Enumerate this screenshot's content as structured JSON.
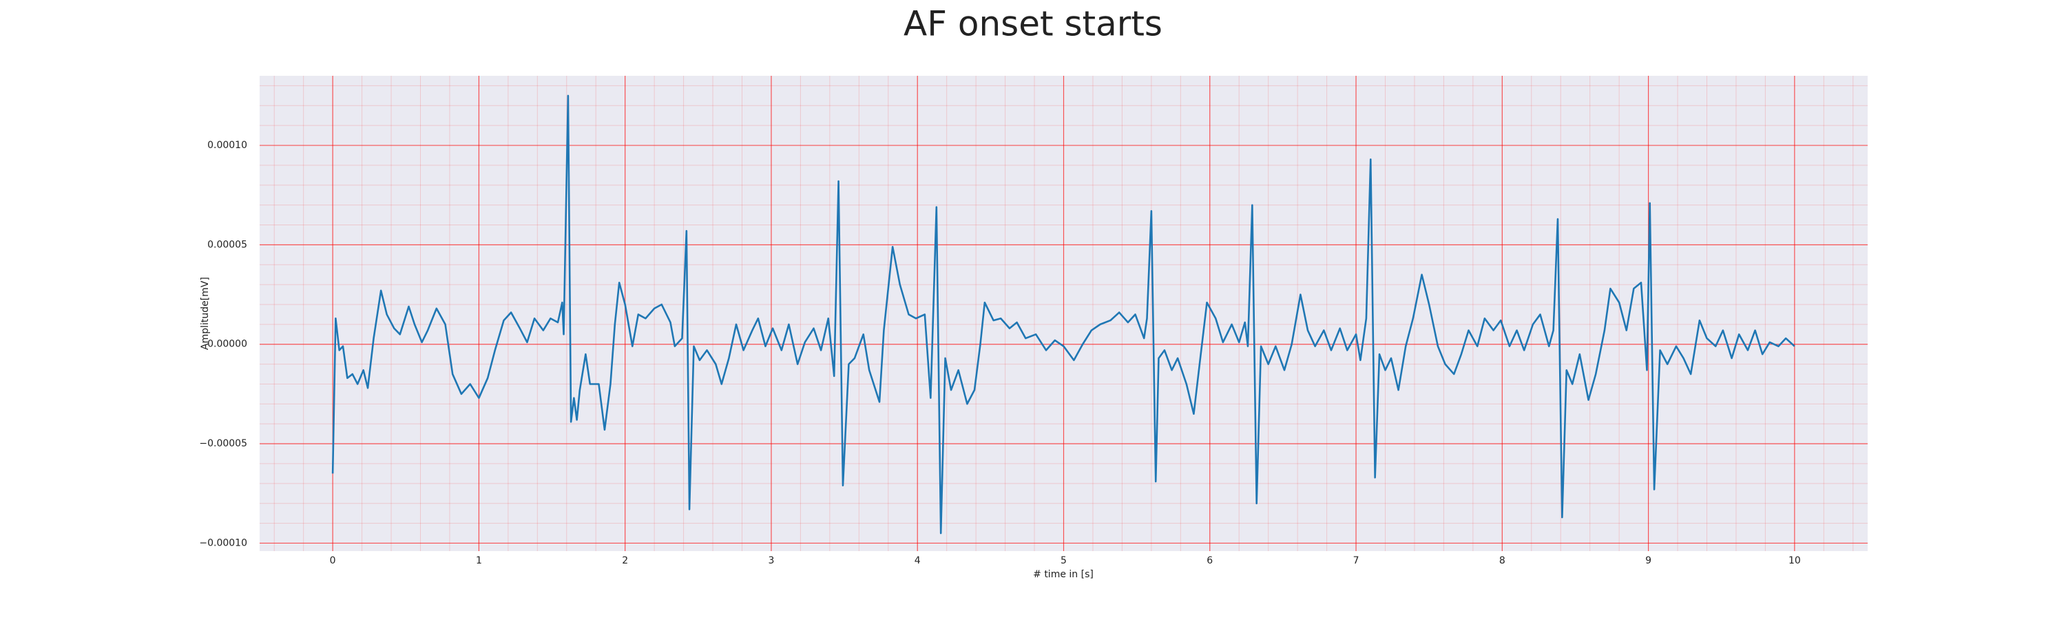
{
  "chart_data": {
    "type": "line",
    "title": "AF onset starts",
    "xlabel": "# time in [s]",
    "ylabel": "Amplitude[mV]",
    "xlim": [
      -0.5,
      10.5
    ],
    "ylim": [
      -0.000104,
      0.000135
    ],
    "xticks": [
      0,
      1,
      2,
      3,
      4,
      5,
      6,
      7,
      8,
      9,
      10
    ],
    "yticks": [
      {
        "value": -0.0001,
        "label": "−0.00010"
      },
      {
        "value": -5e-05,
        "label": "−0.00005"
      },
      {
        "value": 0,
        "label": "0.00000"
      },
      {
        "value": 5e-05,
        "label": "0.00005"
      },
      {
        "value": 0.0001,
        "label": "0.00010"
      }
    ],
    "grid": true,
    "minor_grid": true,
    "grid_color": "#ff0000",
    "background": "#eaeaf2",
    "series": [
      {
        "color": "#1f77b4",
        "x": [
          0,
          0.02,
          0.045,
          0.07,
          0.1,
          0.135,
          0.17,
          0.21,
          0.24,
          0.28,
          0.33,
          0.37,
          0.42,
          0.46,
          0.52,
          0.56,
          0.61,
          0.65,
          0.71,
          0.77,
          0.82,
          0.88,
          0.94,
          1.0,
          1.06,
          1.11,
          1.17,
          1.22,
          1.28,
          1.33,
          1.38,
          1.44,
          1.49,
          1.54,
          1.57,
          1.58,
          1.61,
          1.63,
          1.65,
          1.67,
          1.69,
          1.73,
          1.76,
          1.82,
          1.86,
          1.9,
          1.93,
          1.96,
          2.0,
          2.05,
          2.09,
          2.14,
          2.2,
          2.25,
          2.31,
          2.34,
          2.39,
          2.42,
          2.44,
          2.47,
          2.51,
          2.56,
          2.62,
          2.66,
          2.71,
          2.76,
          2.81,
          2.87,
          2.91,
          2.96,
          3.01,
          3.07,
          3.12,
          3.18,
          3.23,
          3.29,
          3.34,
          3.39,
          3.43,
          3.46,
          3.49,
          3.53,
          3.57,
          3.63,
          3.67,
          3.74,
          3.77,
          3.83,
          3.88,
          3.94,
          3.99,
          4.05,
          4.09,
          4.13,
          4.16,
          4.19,
          4.23,
          4.28,
          4.34,
          4.39,
          4.43,
          4.46,
          4.52,
          4.57,
          4.63,
          4.68,
          4.74,
          4.81,
          4.88,
          4.94,
          5.0,
          5.07,
          5.13,
          5.19,
          5.25,
          5.32,
          5.38,
          5.44,
          5.49,
          5.55,
          5.57,
          5.6,
          5.63,
          5.65,
          5.69,
          5.74,
          5.78,
          5.84,
          5.89,
          5.93,
          5.98,
          6.04,
          6.09,
          6.15,
          6.2,
          6.24,
          6.26,
          6.29,
          6.32,
          6.35,
          6.4,
          6.45,
          6.51,
          6.56,
          6.62,
          6.67,
          6.72,
          6.78,
          6.83,
          6.89,
          6.94,
          7.0,
          7.03,
          7.07,
          7.1,
          7.13,
          7.16,
          7.2,
          7.24,
          7.29,
          7.34,
          7.39,
          7.45,
          7.5,
          7.56,
          7.61,
          7.67,
          7.72,
          7.77,
          7.83,
          7.88,
          7.94,
          7.99,
          8.05,
          8.1,
          8.15,
          8.21,
          8.26,
          8.32,
          8.35,
          8.38,
          8.41,
          8.44,
          8.48,
          8.53,
          8.59,
          8.64,
          8.7,
          8.74,
          8.8,
          8.85,
          8.9,
          8.95,
          8.99,
          9.01,
          9.04,
          9.08,
          9.13,
          9.19,
          9.24,
          9.29,
          9.35,
          9.4,
          9.46,
          9.51,
          9.57,
          9.62,
          9.68,
          9.73,
          9.78,
          9.83,
          9.89,
          9.94,
          10.0
        ],
        "values": [
          -6.5e-05,
          1.3e-05,
          -3e-06,
          -1e-06,
          -1.7e-05,
          -1.5e-05,
          -2e-05,
          -1.3e-05,
          -2.2e-05,
          3e-06,
          2.7e-05,
          1.5e-05,
          8e-06,
          5e-06,
          1.9e-05,
          1e-05,
          1e-06,
          7e-06,
          1.8e-05,
          1e-05,
          -1.5e-05,
          -2.5e-05,
          -2e-05,
          -2.7e-05,
          -1.7e-05,
          -3e-06,
          1.2e-05,
          1.6e-05,
          8e-06,
          1e-06,
          1.3e-05,
          7e-06,
          1.3e-05,
          1.1e-05,
          2.1e-05,
          5e-06,
          0.000125,
          -3.9e-05,
          -2.7e-05,
          -3.8e-05,
          -2.3e-05,
          -5e-06,
          -2e-05,
          -2e-05,
          -4.3e-05,
          -2e-05,
          1e-05,
          3.1e-05,
          2e-05,
          -1e-06,
          1.5e-05,
          1.3e-05,
          1.8e-05,
          2e-05,
          1.1e-05,
          -1e-06,
          3e-06,
          5.7e-05,
          -8.3e-05,
          -1e-06,
          -8e-06,
          -3e-06,
          -1e-05,
          -2e-05,
          -7e-06,
          1e-05,
          -3e-06,
          7e-06,
          1.3e-05,
          -1e-06,
          8e-06,
          -3e-06,
          1e-05,
          -1e-05,
          1e-06,
          8e-06,
          -3e-06,
          1.3e-05,
          -1.6e-05,
          8.2e-05,
          -7.1e-05,
          -1e-05,
          -7e-06,
          5e-06,
          -1.3e-05,
          -2.9e-05,
          7e-06,
          4.9e-05,
          3e-05,
          1.5e-05,
          1.3e-05,
          1.5e-05,
          -2.7e-05,
          6.9e-05,
          -9.5e-05,
          -7e-06,
          -2.3e-05,
          -1.3e-05,
          -3e-05,
          -2.3e-05,
          0,
          2.1e-05,
          1.2e-05,
          1.3e-05,
          8e-06,
          1.1e-05,
          3e-06,
          5e-06,
          -3e-06,
          2e-06,
          -1e-06,
          -8e-06,
          0,
          7e-06,
          1e-05,
          1.2e-05,
          1.6e-05,
          1.1e-05,
          1.5e-05,
          3e-06,
          1.3e-05,
          6.7e-05,
          -6.9e-05,
          -7e-06,
          -3e-06,
          -1.3e-05,
          -7e-06,
          -2e-05,
          -3.5e-05,
          -1e-05,
          2.1e-05,
          1.3e-05,
          1e-06,
          1e-05,
          1e-06,
          1.1e-05,
          -1e-06,
          7e-05,
          -8e-05,
          -1e-06,
          -1e-05,
          -1e-06,
          -1.3e-05,
          0,
          2.5e-05,
          7e-06,
          -1e-06,
          7e-06,
          -3e-06,
          8e-06,
          -3e-06,
          5e-06,
          -8e-06,
          1.3e-05,
          9.3e-05,
          -6.7e-05,
          -5e-06,
          -1.3e-05,
          -7e-06,
          -2.3e-05,
          -1e-06,
          1.3e-05,
          3.5e-05,
          2e-05,
          -1e-06,
          -1e-05,
          -1.5e-05,
          -5e-06,
          7e-06,
          -1e-06,
          1.3e-05,
          7e-06,
          1.2e-05,
          -1e-06,
          7e-06,
          -3e-06,
          1e-05,
          1.5e-05,
          -1e-06,
          7e-06,
          6.3e-05,
          -8.7e-05,
          -1.3e-05,
          -2e-05,
          -5e-06,
          -2.8e-05,
          -1.5e-05,
          7e-06,
          2.8e-05,
          2.1e-05,
          7e-06,
          2.8e-05,
          3.1e-05,
          -1.3e-05,
          7.1e-05,
          -7.3e-05,
          -3e-06,
          -1e-05,
          -1e-06,
          -7e-06,
          -1.5e-05,
          1.2e-05,
          3e-06,
          -1e-06,
          7e-06,
          -7e-06,
          5e-06,
          -3e-06,
          7e-06,
          -5e-06,
          1e-06,
          -1e-06,
          3e-06,
          -1e-06
        ]
      }
    ]
  }
}
